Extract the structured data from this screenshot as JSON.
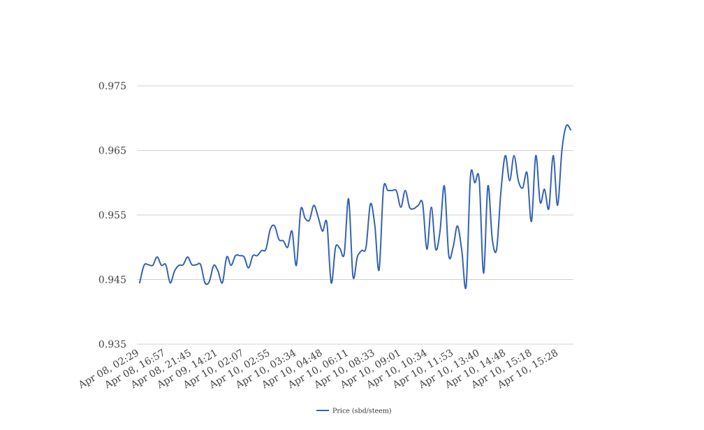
{
  "chart_data": {
    "type": "line",
    "title": "",
    "xlabel": "",
    "ylabel": "",
    "ylim": [
      0.935,
      0.975
    ],
    "yticks": [
      "0.935",
      "0.945",
      "0.955",
      "0.965",
      "0.975"
    ],
    "grid": true,
    "legend": "bottom-center",
    "xtick_labels": [
      "Apr 08, 02:29",
      "Apr 08, 16:57",
      "Apr 08, 21:45",
      "Apr 09, 14:21",
      "Apr 10, 02:07",
      "Apr 10, 02:55",
      "Apr 10, 03:34",
      "Apr 10, 04:48",
      "Apr 10, 06:11",
      "Apr 10, 08:33",
      "Apr 10, 09:01",
      "Apr 10, 10:34",
      "Apr 10, 11:53",
      "Apr 10, 13:40",
      "Apr 10, 14:48",
      "Apr 10, 15:18",
      "Apr 10, 15:28"
    ],
    "series": [
      {
        "name": "Price (sbd/steem)",
        "color": "#3462b5",
        "values": [
          0.9445,
          0.9472,
          0.9473,
          0.9472,
          0.9485,
          0.9472,
          0.9473,
          0.9445,
          0.9463,
          0.9472,
          0.9473,
          0.9485,
          0.9473,
          0.9473,
          0.9473,
          0.9445,
          0.9447,
          0.9472,
          0.9463,
          0.9445,
          0.9485,
          0.9472,
          0.9487,
          0.9487,
          0.9485,
          0.9468,
          0.9487,
          0.9487,
          0.9495,
          0.9497,
          0.9528,
          0.9533,
          0.9512,
          0.951,
          0.95,
          0.9525,
          0.9472,
          0.9558,
          0.9545,
          0.9542,
          0.9565,
          0.9547,
          0.9525,
          0.9538,
          0.9445,
          0.95,
          0.9498,
          0.949,
          0.9575,
          0.9455,
          0.9485,
          0.9495,
          0.95,
          0.9567,
          0.9535,
          0.9465,
          0.959,
          0.9588,
          0.9588,
          0.9587,
          0.9562,
          0.9588,
          0.9562,
          0.956,
          0.9565,
          0.9568,
          0.9497,
          0.9562,
          0.9497,
          0.9525,
          0.9595,
          0.9488,
          0.95,
          0.9533,
          0.9495,
          0.944,
          0.961,
          0.96,
          0.9605,
          0.946,
          0.9595,
          0.9513,
          0.9497,
          0.9587,
          0.9642,
          0.9603,
          0.9642,
          0.9603,
          0.9592,
          0.9615,
          0.954,
          0.9642,
          0.957,
          0.959,
          0.956,
          0.9642,
          0.9565,
          0.965,
          0.9688,
          0.9682
        ]
      }
    ]
  }
}
